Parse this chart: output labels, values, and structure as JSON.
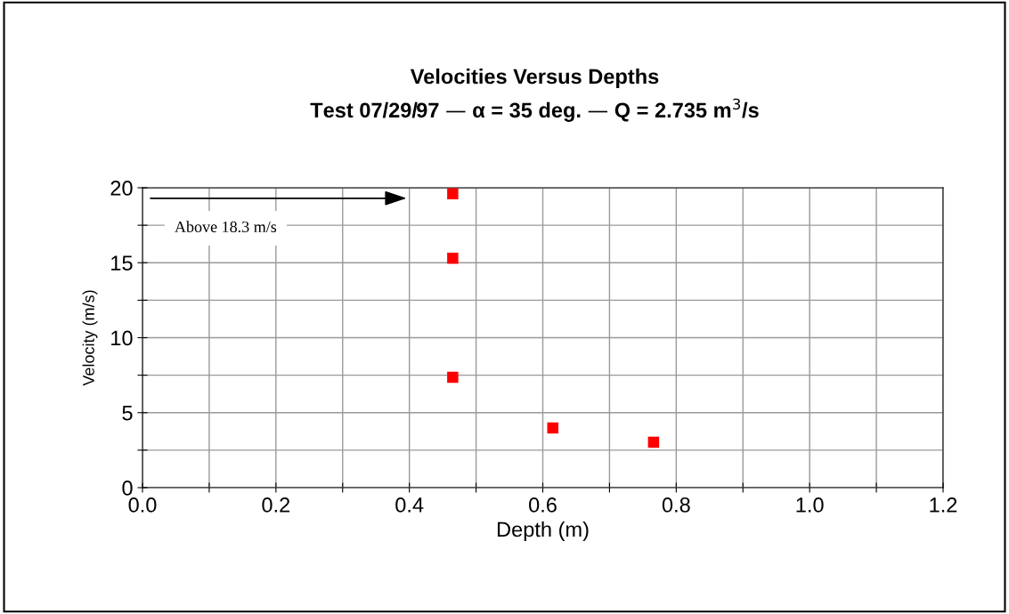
{
  "chart_data": {
    "type": "scatter",
    "title": "Velocities Versus Depths",
    "subtitle": "Test 07/29/97 — α = 35 deg. — Q = 2.735 m$^{3}$/s",
    "xlabel": "Depth (m)",
    "ylabel": "Velocity (m/s)",
    "x": [
      0.465,
      0.465,
      0.465,
      0.615,
      0.766
    ],
    "series": [
      {
        "color": "#ff0000",
        "values": [
          19.6,
          15.3,
          7.36,
          3.98,
          3.03
        ]
      }
    ],
    "marker": "square",
    "grid": true,
    "legend": false,
    "xlim": [
      0,
      1.2
    ],
    "ylim": [
      0,
      20
    ],
    "xticks": [
      {
        "value": 0,
        "label": "0.0"
      },
      {
        "value": 0.1,
        "label": null
      },
      0.2,
      {
        "value": 0.3,
        "label": null
      },
      0.4,
      {
        "value": 0.5,
        "label": null
      },
      0.6,
      {
        "value": 0.7,
        "label": null
      },
      0.8,
      {
        "value": 0.9,
        "label": null
      },
      {
        "value": 1,
        "label": "1.0"
      },
      {
        "value": 1.1,
        "label": null
      },
      1.2
    ],
    "yticks": [
      0,
      {
        "value": 2.5,
        "label": null
      },
      5,
      {
        "value": 7.5,
        "label": null
      },
      10,
      {
        "value": 12.5,
        "label": null
      },
      15,
      {
        "value": 17.5,
        "label": null
      },
      20
    ],
    "annotations": [
      "Above 18.3 m/s"
    ]
  }
}
